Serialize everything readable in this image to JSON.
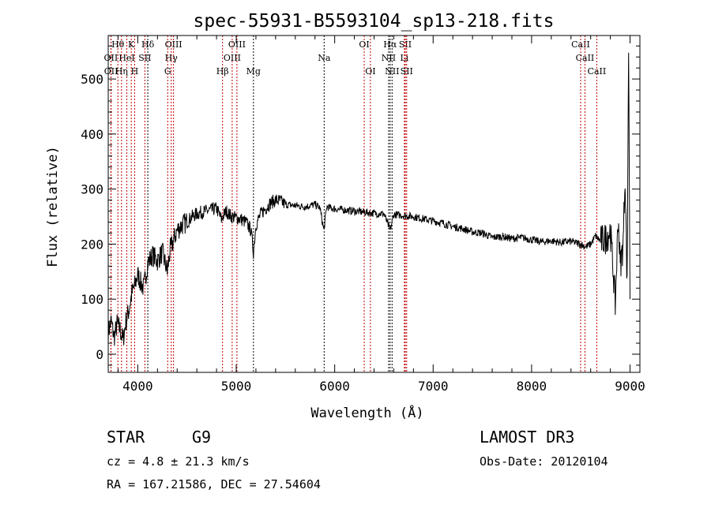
{
  "chart_data": {
    "type": "line",
    "title": "spec-55931-B5593104_sp13-218.fits",
    "xlabel": "Wavelength (Å)",
    "ylabel": "Flux (relative)",
    "xlim": [
      3700,
      9100
    ],
    "ylim": [
      -33,
      579
    ],
    "xticks": [
      4000,
      5000,
      6000,
      7000,
      8000,
      9000
    ],
    "yticks": [
      0,
      100,
      200,
      300,
      400,
      500
    ],
    "series": [
      {
        "name": "spectrum",
        "x": [
          3700,
          3730,
          3760,
          3790,
          3820,
          3850,
          3880,
          3910,
          3940,
          3970,
          4000,
          4030,
          4060,
          4100,
          4150,
          4200,
          4250,
          4300,
          4330,
          4360,
          4400,
          4450,
          4500,
          4550,
          4600,
          4650,
          4700,
          4750,
          4800,
          4850,
          4880,
          4900,
          4950,
          5000,
          5050,
          5100,
          5150,
          5175,
          5200,
          5250,
          5300,
          5350,
          5400,
          5450,
          5500,
          5600,
          5700,
          5800,
          5850,
          5890,
          5920,
          5950,
          6000,
          6100,
          6200,
          6300,
          6400,
          6500,
          6563,
          6600,
          6700,
          6800,
          6900,
          7000,
          7100,
          7200,
          7300,
          7400,
          7500,
          7600,
          7700,
          7800,
          7900,
          8000,
          8100,
          8200,
          8300,
          8400,
          8500,
          8550,
          8600,
          8650,
          8700,
          8750,
          8800,
          8830,
          8850,
          8880,
          8900,
          8930,
          8950,
          8970,
          8985,
          9000
        ],
        "y": [
          40,
          60,
          30,
          55,
          45,
          25,
          60,
          80,
          110,
          125,
          145,
          130,
          120,
          165,
          180,
          170,
          185,
          150,
          190,
          205,
          225,
          235,
          240,
          250,
          255,
          258,
          260,
          262,
          265,
          245,
          255,
          260,
          250,
          248,
          245,
          240,
          225,
          185,
          235,
          255,
          265,
          275,
          280,
          278,
          272,
          270,
          268,
          272,
          266,
          225,
          268,
          266,
          264,
          262,
          260,
          258,
          256,
          255,
          225,
          254,
          252,
          250,
          246,
          242,
          238,
          232,
          228,
          222,
          220,
          212,
          214,
          210,
          212,
          208,
          204,
          206,
          203,
          205,
          200,
          195,
          200,
          215,
          205,
          210,
          225,
          150,
          90,
          250,
          160,
          200,
          330,
          120,
          560,
          100
        ]
      }
    ],
    "lines": [
      {
        "label": "Hθ",
        "wl": 3798,
        "row": 0,
        "color": "#c00000"
      },
      {
        "label": "K",
        "wl": 3934,
        "row": 0,
        "color": "#c00000"
      },
      {
        "label": "Hδ",
        "wl": 4102,
        "row": 0,
        "color": "#000000"
      },
      {
        "label": "OIII",
        "wl": 4363,
        "row": 0,
        "color": "#c00000"
      },
      {
        "label": "OIII",
        "wl": 5007,
        "row": 0,
        "color": "#c00000"
      },
      {
        "label": "OI",
        "wl": 6300,
        "row": 0,
        "color": "#c00000"
      },
      {
        "label": "Hα",
        "wl": 6563,
        "row": 0,
        "color": "#000000"
      },
      {
        "label": "SII",
        "wl": 6717,
        "row": 0,
        "color": "#c00000"
      },
      {
        "label": "CaII",
        "wl": 8498,
        "row": 0,
        "color": "#c00000"
      },
      {
        "label": "OII",
        "wl": 3727,
        "row": 1,
        "color": "#c00000"
      },
      {
        "label": "HeI",
        "wl": 3889,
        "row": 1,
        "color": "#c00000"
      },
      {
        "label": "SII",
        "wl": 4072,
        "row": 1,
        "color": "#c00000"
      },
      {
        "label": "Hγ",
        "wl": 4340,
        "row": 1,
        "color": "#c00000"
      },
      {
        "label": "OIII",
        "wl": 4959,
        "row": 1,
        "color": "#c00000"
      },
      {
        "label": "Na",
        "wl": 5893,
        "row": 1,
        "color": "#000000"
      },
      {
        "label": "NII",
        "wl": 6548,
        "row": 1,
        "color": "#000000"
      },
      {
        "label": "Li",
        "wl": 6708,
        "row": 1,
        "color": "#c00000"
      },
      {
        "label": "CaII",
        "wl": 8542,
        "row": 1,
        "color": "#c00000"
      },
      {
        "label": "OII",
        "wl": 3729,
        "row": 2,
        "color": "#c00000"
      },
      {
        "label": "Hη",
        "wl": 3835,
        "row": 2,
        "color": "#c00000"
      },
      {
        "label": "H",
        "wl": 3968,
        "row": 2,
        "color": "#c00000"
      },
      {
        "label": "G",
        "wl": 4304,
        "row": 2,
        "color": "#c00000"
      },
      {
        "label": "Hβ",
        "wl": 4861,
        "row": 2,
        "color": "#c00000"
      },
      {
        "label": "Mg",
        "wl": 5175,
        "row": 2,
        "color": "#000000"
      },
      {
        "label": "OI",
        "wl": 6363,
        "row": 2,
        "color": "#c00000"
      },
      {
        "label": "NII",
        "wl": 6583,
        "row": 2,
        "color": "#000000"
      },
      {
        "label": "SII",
        "wl": 6731,
        "row": 2,
        "color": "#c00000"
      },
      {
        "label": "CaII",
        "wl": 8662,
        "row": 2,
        "color": "#c00000"
      }
    ]
  },
  "info": {
    "class": "STAR",
    "subclass": "G9",
    "survey": "LAMOST DR3",
    "cz": "cz = 4.8 ± 21.3 km/s",
    "obsdate": "Obs-Date: 20120104",
    "radec": "RA = 167.21586, DEC =  27.54604"
  }
}
